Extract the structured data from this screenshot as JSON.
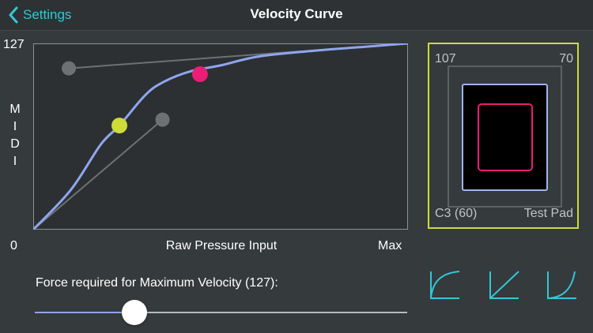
{
  "nav": {
    "back_label": "Settings",
    "title": "Velocity Curve"
  },
  "colors": {
    "accent": "#33c7d6",
    "curve": "#8fa5f0",
    "handle_gray": "#6e7173",
    "point_low": "#cddc39",
    "point_high": "#e91e74",
    "pad_border": "#cddc39"
  },
  "chart_data": {
    "type": "line",
    "y_axis_top_label": "127",
    "y_axis_label": "MIDI",
    "x_axis_min_label": "0",
    "x_axis_label": "Raw Pressure Input",
    "x_axis_max_label": "Max",
    "x_range": [
      0,
      1
    ],
    "y_range": [
      0,
      127
    ],
    "curve": {
      "x": [
        0,
        0.1,
        0.18,
        0.23,
        0.3,
        0.35,
        0.42,
        0.5,
        0.6,
        0.75,
        0.9,
        1.0
      ],
      "y": [
        0,
        27,
        58,
        71,
        92,
        101,
        108,
        112,
        118,
        122,
        125,
        127
      ]
    },
    "control_points": [
      {
        "x": 0.23,
        "y": 71,
        "color": "#cddc39",
        "handle": {
          "x": 0.345,
          "y": 75
        }
      },
      {
        "x": 0.445,
        "y": 106,
        "color": "#e91e74",
        "handle": {
          "x": 0.095,
          "y": 110
        }
      }
    ]
  },
  "pad": {
    "top_left": "107",
    "top_right": "70",
    "bottom_left": "C3 (60)",
    "bottom_right": "Test Pad"
  },
  "force": {
    "label": "Force required for Maximum Velocity (127):",
    "value": 0.25
  },
  "presets": [
    "log-curve-icon",
    "linear-curve-icon",
    "exp-curve-icon"
  ]
}
